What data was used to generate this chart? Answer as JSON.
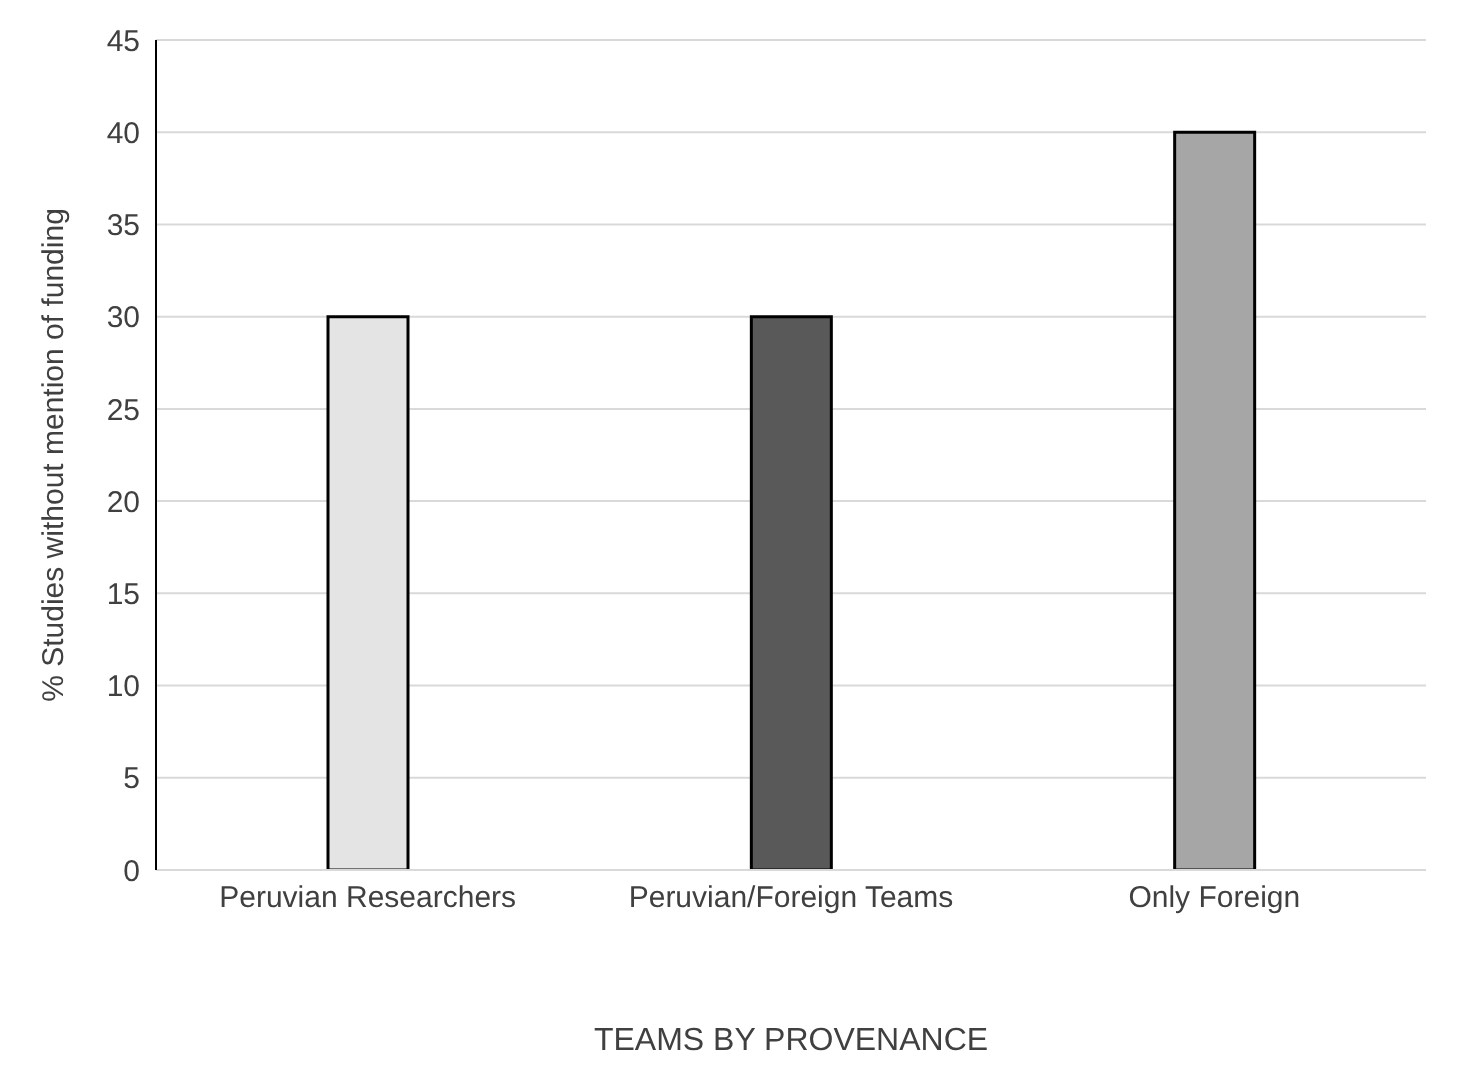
{
  "chart_data": {
    "type": "bar",
    "xlabel": "TEAMS BY PROVENANCE",
    "ylabel": "% Studies without mention of funding",
    "categories": [
      "Peruvian Researchers",
      "Peruvian/Foreign Teams",
      "Only Foreign"
    ],
    "values": [
      30,
      30,
      40
    ],
    "colors": [
      "#e4e4e4",
      "#595959",
      "#a6a6a6"
    ],
    "ylim": [
      0,
      45
    ],
    "yticks": [
      0,
      5,
      10,
      15,
      20,
      25,
      30,
      35,
      40,
      45
    ],
    "grid": "y"
  }
}
